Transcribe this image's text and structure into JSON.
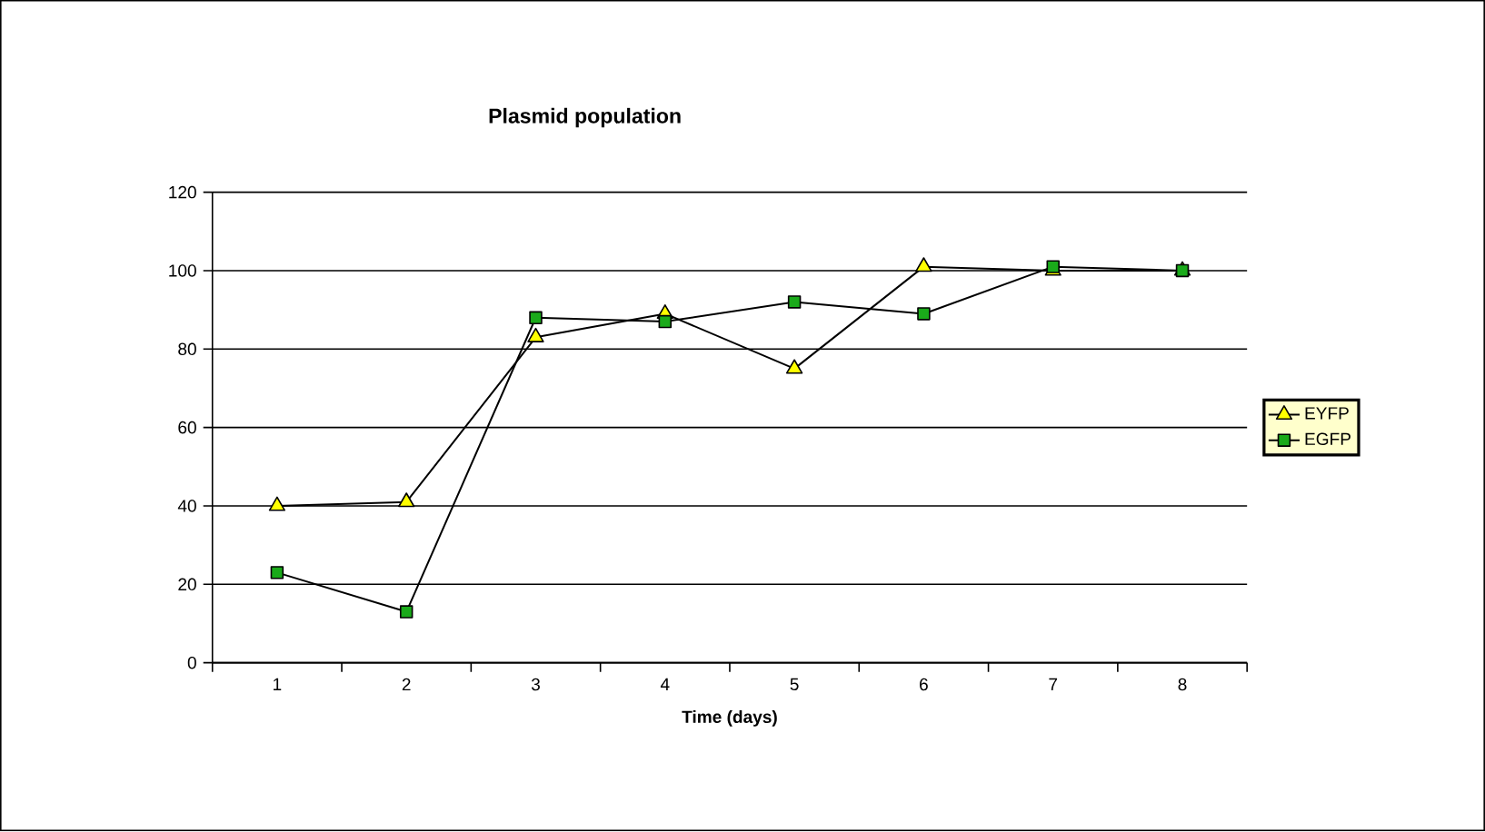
{
  "chart_data": {
    "type": "line",
    "title": "Plasmid population",
    "xlabel": "Time (days)",
    "categories": [
      "1",
      "2",
      "3",
      "4",
      "5",
      "6",
      "7",
      "8"
    ],
    "series": [
      {
        "name": "EYFP",
        "color": "#ffff00",
        "marker": "triangle",
        "values": [
          40,
          41,
          83,
          89,
          75,
          101,
          100,
          100
        ]
      },
      {
        "name": "EGFP",
        "color": "#1aaa1a",
        "marker": "square",
        "values": [
          23,
          13,
          88,
          87,
          92,
          89,
          101,
          100
        ]
      }
    ],
    "ylim": [
      0,
      120
    ],
    "yticks": [
      0,
      20,
      40,
      60,
      80,
      100,
      120
    ],
    "grid": "y",
    "legend": "right"
  }
}
